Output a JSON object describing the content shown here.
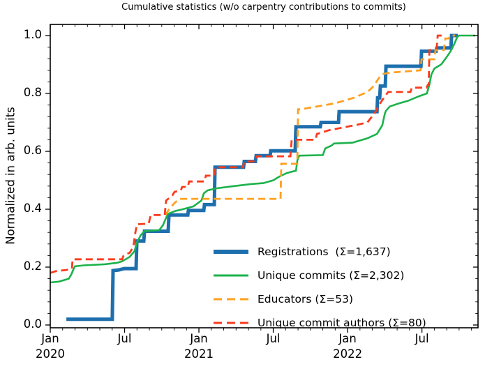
{
  "title": "Cumulative statistics (w/o carpentry contributions to commits)",
  "axes": {
    "y_label": "Normalized in arb. units",
    "y_ticks": [
      {
        "label": "0.0",
        "v": 0.0
      },
      {
        "label": "0.2",
        "v": 0.2
      },
      {
        "label": "0.4",
        "v": 0.4
      },
      {
        "label": "0.6",
        "v": 0.6
      },
      {
        "label": "0.8",
        "v": 0.8
      },
      {
        "label": "1.0",
        "v": 1.0
      }
    ],
    "x_ticks": [
      {
        "label": "Jan",
        "year": "2020",
        "m": 0
      },
      {
        "label": "Jul",
        "year": "",
        "m": 6
      },
      {
        "label": "Jan",
        "year": "2021",
        "m": 12
      },
      {
        "label": "Jul",
        "year": "",
        "m": 18
      },
      {
        "label": "Jan",
        "year": "2022",
        "m": 24
      },
      {
        "label": "Jul",
        "year": "",
        "m": 30
      }
    ]
  },
  "legend_items": [
    {
      "key": "registrations",
      "label": "Registrations  (Σ=1,637)",
      "sigma": "1,637",
      "color": "#1d6fae",
      "dashed": false,
      "thick": true
    },
    {
      "key": "unique-commits",
      "label": "Unique commits (Σ=2,302)",
      "sigma": "2,302",
      "color": "#1cb24b",
      "dashed": false,
      "thick": false
    },
    {
      "key": "educators",
      "label": "Educators (Σ=53)",
      "sigma": "53",
      "color": "#ffa01e",
      "dashed": true,
      "thick": false
    },
    {
      "key": "unique-commit-authors",
      "label": "Unique commit authors (Σ=80)",
      "sigma": "80",
      "color": "#fa3b1c",
      "dashed": true,
      "thick": false
    }
  ],
  "chart_data": {
    "type": "line",
    "title": "Cumulative statistics (w/o carpentry contributions to commits)",
    "xlabel": "",
    "ylabel": "Normalized in arb. units",
    "x_unit": "months since Jan 2020",
    "xlim_months": [
      0,
      34.54
    ],
    "ylim": [
      -0.01,
      1.04
    ],
    "grid": false,
    "legend_position": "lower right inside",
    "x_tick_dates": [
      "Jan 2020",
      "Jul 2020",
      "Jan 2021",
      "Jul 2021",
      "Jan 2022",
      "Jul 2022"
    ],
    "series": [
      {
        "name": "Registrations",
        "total": 1637,
        "color": "#1d6fae",
        "style": "solid",
        "linewidth": 5,
        "points": [
          [
            1.3,
            0.02
          ],
          [
            5.01,
            0.02
          ],
          [
            5.07,
            0.188
          ],
          [
            5.52,
            0.19
          ],
          [
            5.97,
            0.195
          ],
          [
            6.93,
            0.195
          ],
          [
            6.99,
            0.29
          ],
          [
            7.55,
            0.29
          ],
          [
            7.61,
            0.324
          ],
          [
            9.52,
            0.324
          ],
          [
            9.58,
            0.38
          ],
          [
            11.1,
            0.38
          ],
          [
            11.15,
            0.396
          ],
          [
            12.39,
            0.396
          ],
          [
            12.45,
            0.416
          ],
          [
            13.24,
            0.416
          ],
          [
            13.3,
            0.545
          ],
          [
            15.6,
            0.545
          ],
          [
            15.66,
            0.565
          ],
          [
            16.56,
            0.565
          ],
          [
            16.62,
            0.585
          ],
          [
            17.75,
            0.585
          ],
          [
            17.8,
            0.602
          ],
          [
            19.77,
            0.602
          ],
          [
            19.83,
            0.685
          ],
          [
            21.8,
            0.685
          ],
          [
            21.86,
            0.7
          ],
          [
            23.27,
            0.7
          ],
          [
            23.32,
            0.737
          ],
          [
            26.37,
            0.737
          ],
          [
            26.42,
            0.785
          ],
          [
            26.59,
            0.785
          ],
          [
            26.65,
            0.826
          ],
          [
            27.04,
            0.826
          ],
          [
            27.1,
            0.894
          ],
          [
            29.92,
            0.894
          ],
          [
            29.97,
            0.946
          ],
          [
            31.15,
            0.946
          ],
          [
            31.21,
            0.957
          ],
          [
            32.34,
            0.957
          ],
          [
            32.39,
            1.0
          ],
          [
            32.9,
            1.0
          ]
        ]
      },
      {
        "name": "Unique commits",
        "total": 2302,
        "color": "#1cb24b",
        "style": "solid",
        "linewidth": 2.6,
        "points": [
          [
            0,
            0.147
          ],
          [
            0.7,
            0.15
          ],
          [
            1.5,
            0.16
          ],
          [
            1.7,
            0.175
          ],
          [
            1.9,
            0.195
          ],
          [
            2.0,
            0.203
          ],
          [
            2.7,
            0.206
          ],
          [
            4.4,
            0.21
          ],
          [
            5.4,
            0.215
          ],
          [
            5.8,
            0.22
          ],
          [
            6.4,
            0.235
          ],
          [
            6.8,
            0.255
          ],
          [
            7.0,
            0.285
          ],
          [
            7.3,
            0.31
          ],
          [
            7.6,
            0.324
          ],
          [
            8.8,
            0.328
          ],
          [
            9.1,
            0.345
          ],
          [
            9.35,
            0.37
          ],
          [
            9.5,
            0.384
          ],
          [
            10.1,
            0.394
          ],
          [
            10.7,
            0.4
          ],
          [
            11.55,
            0.41
          ],
          [
            12.2,
            0.43
          ],
          [
            12.4,
            0.455
          ],
          [
            12.7,
            0.465
          ],
          [
            13.4,
            0.472
          ],
          [
            14.5,
            0.478
          ],
          [
            16.2,
            0.487
          ],
          [
            17.2,
            0.49
          ],
          [
            18.0,
            0.5
          ],
          [
            18.5,
            0.513
          ],
          [
            19.1,
            0.525
          ],
          [
            19.55,
            0.53
          ],
          [
            19.83,
            0.533
          ],
          [
            19.95,
            0.57
          ],
          [
            20.1,
            0.585
          ],
          [
            22.0,
            0.587
          ],
          [
            22.2,
            0.61
          ],
          [
            22.7,
            0.62
          ],
          [
            22.9,
            0.627
          ],
          [
            24.4,
            0.63
          ],
          [
            25.6,
            0.645
          ],
          [
            26.37,
            0.66
          ],
          [
            26.8,
            0.69
          ],
          [
            27.0,
            0.73
          ],
          [
            27.1,
            0.74
          ],
          [
            27.4,
            0.755
          ],
          [
            28.1,
            0.765
          ],
          [
            28.9,
            0.775
          ],
          [
            29.75,
            0.79
          ],
          [
            30.4,
            0.8
          ],
          [
            30.6,
            0.83
          ],
          [
            30.76,
            0.865
          ],
          [
            31.0,
            0.886
          ],
          [
            31.55,
            0.9
          ],
          [
            31.9,
            0.92
          ],
          [
            32.3,
            0.945
          ],
          [
            32.6,
            0.97
          ],
          [
            32.85,
            0.995
          ],
          [
            33.0,
            1.0
          ],
          [
            34.3,
            1.0
          ]
        ]
      },
      {
        "name": "Educators",
        "total": 53,
        "color": "#ffa01e",
        "style": "dashed",
        "linewidth": 2.8,
        "points": [
          [
            9.3,
            0.38
          ],
          [
            9.6,
            0.4
          ],
          [
            10.0,
            0.42
          ],
          [
            10.4,
            0.436
          ],
          [
            18.59,
            0.436
          ],
          [
            18.65,
            0.557
          ],
          [
            19.94,
            0.557
          ],
          [
            20.0,
            0.745
          ],
          [
            20.2,
            0.745
          ],
          [
            23.0,
            0.766
          ],
          [
            24.5,
            0.785
          ],
          [
            25.6,
            0.805
          ],
          [
            26.1,
            0.825
          ],
          [
            26.4,
            0.845
          ],
          [
            26.6,
            0.858
          ],
          [
            26.9,
            0.868
          ],
          [
            27.5,
            0.872
          ],
          [
            28.6,
            0.876
          ],
          [
            29.9,
            0.88
          ],
          [
            29.97,
            0.918
          ],
          [
            31.0,
            0.918
          ],
          [
            31.1,
            0.95
          ],
          [
            31.77,
            0.95
          ],
          [
            31.89,
            0.99
          ],
          [
            32.17,
            0.99
          ],
          [
            32.28,
            1.0
          ],
          [
            32.68,
            1.0
          ]
        ]
      },
      {
        "name": "Unique commit authors",
        "total": 80,
        "color": "#fa3b1c",
        "style": "dashed",
        "linewidth": 2.8,
        "points": [
          [
            0,
            0.18
          ],
          [
            0.45,
            0.186
          ],
          [
            1.3,
            0.19
          ],
          [
            1.75,
            0.195
          ],
          [
            1.8,
            0.227
          ],
          [
            5.8,
            0.227
          ],
          [
            5.92,
            0.24
          ],
          [
            6.42,
            0.25
          ],
          [
            6.7,
            0.27
          ],
          [
            6.87,
            0.32
          ],
          [
            7.0,
            0.348
          ],
          [
            7.94,
            0.35
          ],
          [
            8.11,
            0.38
          ],
          [
            9.24,
            0.38
          ],
          [
            9.35,
            0.43
          ],
          [
            9.86,
            0.448
          ],
          [
            10.03,
            0.46
          ],
          [
            10.54,
            0.465
          ],
          [
            10.65,
            0.477
          ],
          [
            11.1,
            0.477
          ],
          [
            11.21,
            0.496
          ],
          [
            12.45,
            0.496
          ],
          [
            12.56,
            0.516
          ],
          [
            13.24,
            0.516
          ],
          [
            13.35,
            0.545
          ],
          [
            15.55,
            0.545
          ],
          [
            15.66,
            0.565
          ],
          [
            16.56,
            0.565
          ],
          [
            16.68,
            0.583
          ],
          [
            19.38,
            0.583
          ],
          [
            19.49,
            0.64
          ],
          [
            21.41,
            0.64
          ],
          [
            21.52,
            0.66
          ],
          [
            22.5,
            0.673
          ],
          [
            23.6,
            0.682
          ],
          [
            24.9,
            0.693
          ],
          [
            25.6,
            0.7
          ],
          [
            26.2,
            0.733
          ],
          [
            26.54,
            0.76
          ],
          [
            26.93,
            0.785
          ],
          [
            27.27,
            0.805
          ],
          [
            29.07,
            0.805
          ],
          [
            29.18,
            0.82
          ],
          [
            30.37,
            0.82
          ],
          [
            30.48,
            0.83
          ],
          [
            30.55,
            0.83
          ],
          [
            30.6,
            0.95
          ],
          [
            31.1,
            0.955
          ],
          [
            31.2,
            0.96
          ],
          [
            31.27,
            1.0
          ],
          [
            31.72,
            1.0
          ]
        ]
      }
    ]
  }
}
